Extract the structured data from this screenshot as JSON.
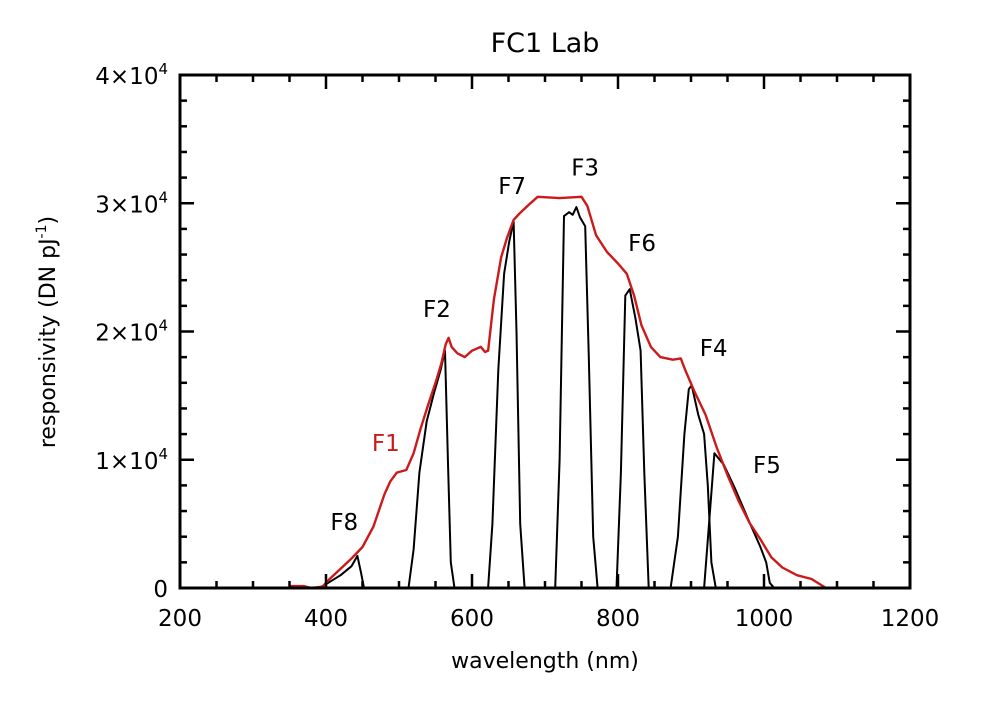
{
  "chart_data": {
    "type": "line",
    "title": "FC1 Lab",
    "xlabel": "wavelength (nm)",
    "ylabel": "responsivity (DN pJ",
    "ylabel_sup": "-1",
    "ylabel_end": ")",
    "xlim": [
      200,
      1200
    ],
    "ylim": [
      0,
      40000
    ],
    "xticks": [
      200,
      400,
      600,
      800,
      1000,
      1200
    ],
    "xtick_labels": [
      "200",
      "400",
      "600",
      "800",
      "1000",
      "1200"
    ],
    "yticks": [
      0,
      10000,
      20000,
      30000,
      40000
    ],
    "ytick_labels": [
      {
        "base": "0",
        "exp": ""
      },
      {
        "base": "1×10",
        "exp": "4"
      },
      {
        "base": "2×10",
        "exp": "4"
      },
      {
        "base": "3×10",
        "exp": "4"
      },
      {
        "base": "4×10",
        "exp": "4"
      }
    ],
    "x_minor_step": 50,
    "y_minor_step": 2000,
    "colors": {
      "F1": "#cc1a1a",
      "filters": "#000000"
    },
    "series": [
      {
        "name": "F1",
        "color": "#cc1a1a",
        "points": [
          [
            350,
            150
          ],
          [
            370,
            150
          ],
          [
            380,
            0
          ],
          [
            395,
            100
          ],
          [
            405,
            700
          ],
          [
            420,
            1500
          ],
          [
            435,
            2300
          ],
          [
            450,
            3200
          ],
          [
            465,
            4800
          ],
          [
            480,
            7300
          ],
          [
            488,
            8300
          ],
          [
            497,
            9000
          ],
          [
            510,
            9200
          ],
          [
            520,
            10500
          ],
          [
            530,
            12500
          ],
          [
            540,
            14300
          ],
          [
            550,
            16000
          ],
          [
            558,
            17500
          ],
          [
            564,
            19000
          ],
          [
            568,
            19500
          ],
          [
            572,
            18800
          ],
          [
            580,
            18300
          ],
          [
            590,
            18000
          ],
          [
            600,
            18500
          ],
          [
            612,
            18800
          ],
          [
            618,
            18400
          ],
          [
            622,
            18500
          ],
          [
            630,
            22500
          ],
          [
            640,
            25800
          ],
          [
            648,
            27300
          ],
          [
            657,
            28700
          ],
          [
            665,
            29200
          ],
          [
            680,
            30000
          ],
          [
            690,
            30500
          ],
          [
            720,
            30400
          ],
          [
            750,
            30500
          ],
          [
            758,
            29800
          ],
          [
            770,
            27500
          ],
          [
            785,
            26200
          ],
          [
            800,
            25300
          ],
          [
            812,
            24500
          ],
          [
            822,
            22800
          ],
          [
            832,
            20500
          ],
          [
            845,
            18800
          ],
          [
            858,
            18000
          ],
          [
            875,
            17800
          ],
          [
            886,
            17900
          ],
          [
            892,
            17000
          ],
          [
            905,
            15300
          ],
          [
            920,
            13500
          ],
          [
            935,
            11000
          ],
          [
            950,
            8800
          ],
          [
            965,
            6800
          ],
          [
            980,
            5100
          ],
          [
            995,
            3800
          ],
          [
            1010,
            2400
          ],
          [
            1025,
            1600
          ],
          [
            1045,
            1000
          ],
          [
            1065,
            700
          ],
          [
            1085,
            0
          ]
        ]
      },
      {
        "name": "F8",
        "color": "#000000",
        "points": [
          [
            390,
            0
          ],
          [
            400,
            300
          ],
          [
            420,
            1000
          ],
          [
            435,
            1700
          ],
          [
            443,
            2500
          ],
          [
            448,
            1200
          ],
          [
            452,
            0
          ]
        ]
      },
      {
        "name": "F2",
        "color": "#000000",
        "points": [
          [
            513,
            0
          ],
          [
            520,
            3000
          ],
          [
            528,
            9000
          ],
          [
            538,
            13000
          ],
          [
            548,
            15200
          ],
          [
            557,
            17000
          ],
          [
            563,
            18500
          ],
          [
            567,
            10000
          ],
          [
            571,
            2000
          ],
          [
            576,
            0
          ]
        ]
      },
      {
        "name": "F7",
        "color": "#000000",
        "points": [
          [
            622,
            0
          ],
          [
            628,
            5000
          ],
          [
            636,
            17000
          ],
          [
            644,
            24500
          ],
          [
            651,
            27000
          ],
          [
            657,
            28600
          ],
          [
            661,
            20000
          ],
          [
            666,
            5000
          ],
          [
            672,
            0
          ]
        ]
      },
      {
        "name": "F3",
        "color": "#000000",
        "points": [
          [
            714,
            0
          ],
          [
            720,
            10000
          ],
          [
            726,
            29000
          ],
          [
            733,
            29300
          ],
          [
            738,
            29100
          ],
          [
            743,
            29700
          ],
          [
            748,
            28900
          ],
          [
            755,
            28200
          ],
          [
            760,
            18000
          ],
          [
            766,
            4000
          ],
          [
            772,
            0
          ]
        ]
      },
      {
        "name": "F6",
        "color": "#000000",
        "points": [
          [
            798,
            0
          ],
          [
            804,
            9000
          ],
          [
            810,
            22800
          ],
          [
            816,
            23300
          ],
          [
            824,
            21000
          ],
          [
            831,
            18500
          ],
          [
            836,
            9000
          ],
          [
            842,
            0
          ]
        ]
      },
      {
        "name": "F4",
        "color": "#000000",
        "points": [
          [
            872,
            0
          ],
          [
            882,
            4000
          ],
          [
            891,
            12000
          ],
          [
            897,
            15500
          ],
          [
            901,
            15800
          ],
          [
            910,
            13500
          ],
          [
            918,
            12000
          ],
          [
            923,
            8000
          ],
          [
            928,
            2000
          ],
          [
            934,
            0
          ]
        ]
      },
      {
        "name": "F5",
        "color": "#000000",
        "points": [
          [
            918,
            0
          ],
          [
            926,
            6000
          ],
          [
            932,
            10500
          ],
          [
            945,
            9600
          ],
          [
            960,
            7800
          ],
          [
            978,
            5400
          ],
          [
            995,
            3200
          ],
          [
            1003,
            2000
          ],
          [
            1008,
            400
          ],
          [
            1014,
            0
          ]
        ]
      }
    ],
    "annotations": [
      {
        "text": "F8",
        "x": 425,
        "y": 5150,
        "color": "#000000"
      },
      {
        "text": "F1",
        "x": 482,
        "y": 11300,
        "color": "#cc1a1a"
      },
      {
        "text": "F2",
        "x": 552,
        "y": 21750,
        "color": "#000000"
      },
      {
        "text": "F7",
        "x": 655,
        "y": 31350,
        "color": "#000000"
      },
      {
        "text": "F3",
        "x": 755,
        "y": 32800,
        "color": "#000000"
      },
      {
        "text": "F6",
        "x": 833,
        "y": 26900,
        "color": "#000000"
      },
      {
        "text": "F4",
        "x": 931,
        "y": 18700,
        "color": "#000000"
      },
      {
        "text": "F5",
        "x": 1004,
        "y": 9600,
        "color": "#000000"
      }
    ],
    "grid": false,
    "legend": "none"
  }
}
